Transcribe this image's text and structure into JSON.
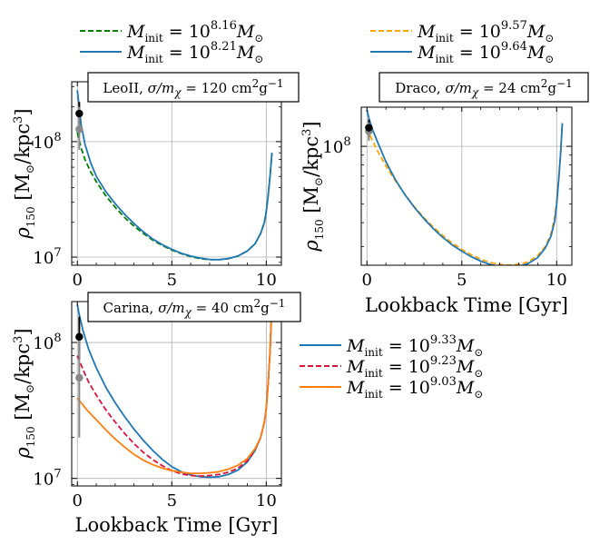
{
  "chart_data": [
    {
      "panel": "LeoII",
      "type": "line",
      "title": {
        "name": "LeoII",
        "sigma_label": "σ/m",
        "chi": "χ",
        "value": "= 120 cm",
        "exp2": "2",
        "unit": "g",
        "expm1": "−1"
      },
      "xlabel": "",
      "ylabel": {
        "rho": "ρ",
        "sub": "150",
        "unit": "[M",
        "odot": "⊙",
        "slash": "/kpc",
        "exp": "3",
        "close": "]"
      },
      "xscale": "linear",
      "yscale": "log",
      "xlim": [
        -0.3,
        10.8
      ],
      "ylim": [
        8500000.0,
        330000000.0
      ],
      "xticks": [
        0,
        5,
        10
      ],
      "xtick_labels": [
        "0",
        "5",
        "10"
      ],
      "yticks": [
        10000000.0,
        100000000.0
      ],
      "ytick_labels": [
        {
          "base": "10",
          "exp": "7"
        },
        {
          "base": "10",
          "exp": "8"
        }
      ],
      "grid": true,
      "series": [
        {
          "name": "M_init = 10^8.16 M_sun",
          "mass_exp": "8.16",
          "color": "#008000",
          "dash": "6,3",
          "x": [
            0.0,
            0.2,
            0.4,
            0.7,
            1.0,
            1.5,
            2.0,
            2.5,
            3.0,
            3.5,
            4.0,
            4.5,
            5.0,
            5.5,
            6.0,
            6.5,
            7.0,
            7.5,
            8.0,
            8.5,
            9.0,
            9.4,
            9.7,
            9.9,
            10.0,
            10.1,
            10.2,
            10.3
          ],
          "y": [
            120000000.0,
            88000000.0,
            70000000.0,
            55000000.0,
            45000000.0,
            34000000.0,
            27000000.0,
            22000000.0,
            18500000.0,
            16000000.0,
            14000000.0,
            12600000.0,
            11500000.0,
            10700000.0,
            10100000.0,
            9700000.0,
            9500000.0,
            9500000.0,
            9700000.0,
            10200000.0,
            11300000.0,
            13000000.0,
            16000000.0,
            20000000.0,
            25000000.0,
            34000000.0,
            50000000.0,
            80000000.0
          ]
        },
        {
          "name": "M_init = 10^8.21 M_sun",
          "mass_exp": "8.21",
          "color": "#1f77b4",
          "dash": "",
          "x": [
            0.0,
            0.1,
            0.2,
            0.4,
            0.7,
            1.0,
            1.5,
            2.0,
            2.5,
            3.0,
            3.5,
            4.0,
            4.5,
            5.0,
            5.5,
            6.0,
            6.5,
            7.0,
            7.5,
            8.0,
            8.5,
            9.0,
            9.4,
            9.7,
            9.9,
            10.0,
            10.1,
            10.2,
            10.3
          ],
          "y": [
            280000000.0,
            200000000.0,
            140000000.0,
            95000000.0,
            66000000.0,
            50000000.0,
            37000000.0,
            29000000.0,
            23500000.0,
            19500000.0,
            16500000.0,
            14300000.0,
            12800000.0,
            11700000.0,
            10800000.0,
            10200000.0,
            9800000.0,
            9550000.0,
            9500000.0,
            9700000.0,
            10200000.0,
            11300000.0,
            13000000.0,
            16000000.0,
            20000000.0,
            25000000.0,
            34000000.0,
            50000000.0,
            80000000.0
          ]
        }
      ],
      "observations": [
        {
          "label": "black point",
          "x": 0.1,
          "y": 175000000.0,
          "color": "#000000",
          "err_low": 140000000.0,
          "err_high": 220000000.0
        },
        {
          "label": "grey point",
          "x": 0.1,
          "y": 128000000.0,
          "color": "#888888",
          "err_low": 85000000.0,
          "err_high": 200000000.0
        }
      ]
    },
    {
      "panel": "Draco",
      "type": "line",
      "title": {
        "name": "Draco",
        "sigma_label": "σ/m",
        "chi": "χ",
        "value": "= 24 cm",
        "exp2": "2",
        "unit": "g",
        "expm1": "−1"
      },
      "xlabel": "Lookback Time [Gyr]",
      "ylabel": {
        "rho": "ρ",
        "sub": "150",
        "unit": "[M",
        "odot": "⊙",
        "slash": "/kpc",
        "exp": "3",
        "close": "]"
      },
      "xscale": "linear",
      "yscale": "log",
      "xlim": [
        -0.3,
        10.8
      ],
      "ylim": [
        24000000.0,
        160000000.0
      ],
      "xticks": [
        0,
        5,
        10
      ],
      "xtick_labels": [
        "0",
        "5",
        "10"
      ],
      "yticks": [
        100000000.0
      ],
      "ytick_labels": [
        {
          "base": "10",
          "exp": "8"
        }
      ],
      "grid": true,
      "series": [
        {
          "name": "M_init = 10^9.57 M_sun",
          "mass_exp": "9.57",
          "color": "#ffa500",
          "dash": "6,3",
          "x": [
            0.0,
            0.2,
            0.5,
            1.0,
            1.5,
            2.0,
            2.5,
            3.0,
            3.5,
            4.0,
            4.5,
            5.0,
            5.5,
            6.0,
            6.5,
            7.0,
            7.5,
            8.0,
            8.5,
            9.0,
            9.4,
            9.7,
            9.9,
            10.0,
            10.1,
            10.2,
            10.3
          ],
          "y": [
            125000000.0,
            112000000.0,
            97000000.0,
            79000000.0,
            66000000.0,
            56000000.0,
            48500000.0,
            42500000.0,
            38000000.0,
            34200000.0,
            31300000.0,
            29000000.0,
            27200000.0,
            25800000.0,
            24800000.0,
            24200000.0,
            24000000.0,
            24300000.0,
            25000000.0,
            27000000.0,
            30000000.0,
            35000000.0,
            43000000.0,
            52000000.0,
            68000000.0,
            90000000.0,
            132000000.0
          ]
        },
        {
          "name": "M_init = 10^9.64 M_sun",
          "mass_exp": "9.64",
          "color": "#1f77b4",
          "dash": "",
          "x": [
            0.0,
            0.1,
            0.3,
            0.6,
            1.0,
            1.5,
            2.0,
            2.5,
            3.0,
            3.5,
            4.0,
            4.5,
            5.0,
            5.5,
            6.0,
            6.5,
            7.0,
            7.5,
            8.0,
            8.5,
            9.0,
            9.4,
            9.7,
            9.9,
            10.0,
            10.1,
            10.2,
            10.3
          ],
          "y": [
            155000000.0,
            140000000.0,
            122000000.0,
            103000000.0,
            83000000.0,
            67000000.0,
            56000000.0,
            48000000.0,
            42000000.0,
            37200000.0,
            33500000.0,
            30600000.0,
            28400000.0,
            26600000.0,
            25200000.0,
            24200000.0,
            23600000.0,
            23400000.0,
            23600000.0,
            24500000.0,
            26300000.0,
            29500000.0,
            34000000.0,
            41000000.0,
            50000000.0,
            66000000.0,
            90000000.0,
            132000000.0
          ]
        }
      ],
      "observations": [
        {
          "label": "black point",
          "x": 0.1,
          "y": 125000000.0,
          "color": "#000000",
          "err_low": 112000000.0,
          "err_high": 138000000.0
        },
        {
          "label": "grey point",
          "x": 0.1,
          "y": 120000000.0,
          "color": "#888888",
          "err_low": 107000000.0,
          "err_high": 133000000.0
        }
      ]
    },
    {
      "panel": "Carina",
      "type": "line",
      "title": {
        "name": "Carina",
        "sigma_label": "σ/m",
        "chi": "χ",
        "value": "= 40 cm",
        "exp2": "2",
        "unit": "g",
        "expm1": "−1"
      },
      "xlabel": "Lookback Time [Gyr]",
      "ylabel": {
        "rho": "ρ",
        "sub": "150",
        "unit": "[M",
        "odot": "⊙",
        "slash": "/kpc",
        "exp": "3",
        "close": "]"
      },
      "xscale": "linear",
      "yscale": "log",
      "xlim": [
        -0.3,
        10.8
      ],
      "ylim": [
        8800000.0,
        200000000.0
      ],
      "xticks": [
        0,
        5,
        10
      ],
      "xtick_labels": [
        "0",
        "5",
        "10"
      ],
      "yticks": [
        10000000.0,
        100000000.0
      ],
      "ytick_labels": [
        {
          "base": "10",
          "exp": "7"
        },
        {
          "base": "10",
          "exp": "8"
        }
      ],
      "grid": true,
      "series": [
        {
          "name": "M_init = 10^9.33 M_sun",
          "mass_exp": "9.33",
          "color": "#1f77b4",
          "dash": "",
          "x": [
            0.0,
            0.1,
            0.3,
            0.6,
            1.0,
            1.5,
            2.0,
            2.5,
            3.0,
            3.5,
            4.0,
            4.5,
            5.0,
            5.5,
            6.0,
            6.5,
            7.0,
            7.5,
            8.0,
            8.5,
            9.0,
            9.4,
            9.7,
            9.9,
            10.0,
            10.1,
            10.2,
            10.3
          ],
          "y": [
            190000000.0,
            160000000.0,
            122000000.0,
            89000000.0,
            65000000.0,
            47000000.0,
            36000000.0,
            28500000.0,
            23000000.0,
            19000000.0,
            16000000.0,
            13800000.0,
            12200000.0,
            11200000.0,
            10600000.0,
            10300000.0,
            10200000.0,
            10300000.0,
            10700000.0,
            11500000.0,
            13200000.0,
            16000000.0,
            20000000.0,
            26000000.0,
            33000000.0,
            50000000.0,
            85000000.0,
            200000000.0
          ]
        },
        {
          "name": "M_init = 10^9.23 M_sun",
          "mass_exp": "9.23",
          "color": "#dc143c",
          "dash": "6,3",
          "x": [
            0.0,
            0.3,
            0.6,
            1.0,
            1.5,
            2.0,
            2.5,
            3.0,
            3.5,
            4.0,
            4.5,
            5.0,
            5.5,
            6.0,
            6.5,
            7.0,
            7.5,
            8.0,
            8.5,
            9.0,
            9.4,
            9.7,
            9.9,
            10.0,
            10.1,
            10.2,
            10.3
          ],
          "y": [
            80000000.0,
            63000000.0,
            51000000.0,
            41000000.0,
            32000000.0,
            26000000.0,
            21400000.0,
            18000000.0,
            15500000.0,
            13700000.0,
            12400000.0,
            11400000.0,
            10800000.0,
            10500000.0,
            10400000.0,
            10500000.0,
            10700000.0,
            11100000.0,
            11900000.0,
            13500000.0,
            16200000.0,
            20000000.0,
            26000000.0,
            33000000.0,
            50000000.0,
            85000000.0,
            200000000.0
          ]
        },
        {
          "name": "M_init = 10^9.03 M_sun",
          "mass_exp": "9.03",
          "color": "#ff7f0e",
          "dash": "",
          "x": [
            0.0,
            0.5,
            1.0,
            1.5,
            2.0,
            2.5,
            3.0,
            3.5,
            4.0,
            4.5,
            5.0,
            5.5,
            6.0,
            6.5,
            7.0,
            7.5,
            8.0,
            8.5,
            9.0,
            9.4,
            9.7,
            9.9,
            10.0,
            10.1,
            10.2,
            10.3
          ],
          "y": [
            39000000.0,
            32000000.0,
            27000000.0,
            22800000.0,
            19500000.0,
            17000000.0,
            15000000.0,
            13600000.0,
            12600000.0,
            11900000.0,
            11400000.0,
            11100000.0,
            10900000.0,
            10900000.0,
            11000000.0,
            11200000.0,
            11700000.0,
            12500000.0,
            14000000.0,
            16500000.0,
            20000000.0,
            26000000.0,
            33000000.0,
            50000000.0,
            85000000.0,
            200000000.0
          ]
        }
      ],
      "observations": [
        {
          "label": "black point",
          "x": 0.1,
          "y": 110000000.0,
          "color": "#000000",
          "err_low": 75000000.0,
          "err_high": 155000000.0
        },
        {
          "label": "grey point",
          "x": 0.1,
          "y": 55000000.0,
          "color": "#888888",
          "err_low": 20000000.0,
          "err_high": 105000000.0
        }
      ]
    }
  ],
  "legend_common": {
    "m": "M",
    "sub": "init",
    "eq": " = 10",
    "msun": "M",
    "odot": "⊙"
  }
}
